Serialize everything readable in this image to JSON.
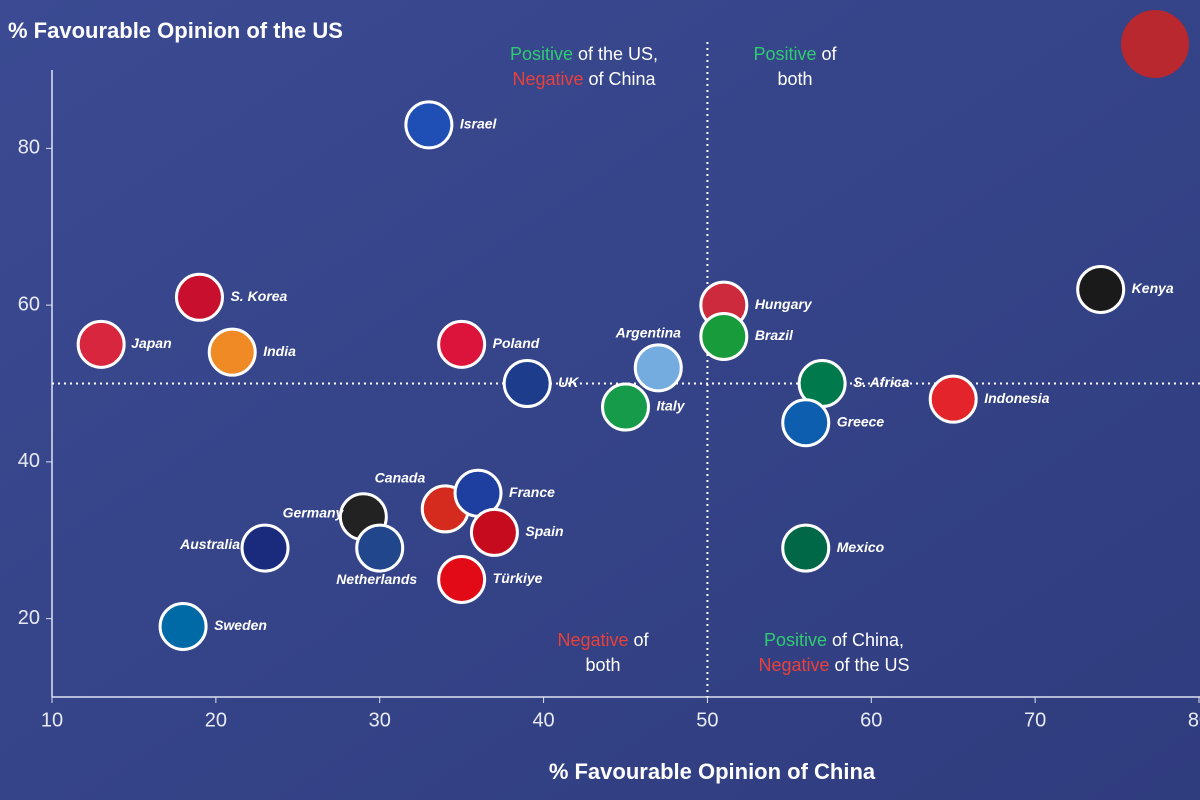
{
  "chart_data": {
    "type": "scatter",
    "y_title": "% Favourable Opinion of the US",
    "x_title": "% Favourable Opinion of China",
    "xlim": [
      10,
      80
    ],
    "xticks": [
      10,
      20,
      30,
      40,
      50,
      60,
      70,
      80
    ],
    "ylim": [
      10,
      90
    ],
    "yticks": [
      20,
      40,
      60,
      80
    ],
    "divider_x": 50,
    "divider_y": 50,
    "positive_color": "#2ecc71",
    "negative_color": "#e8403a",
    "quadrants": [
      [
        [
          {
            "text": "Positive",
            "tone": "positive"
          },
          {
            "text": " of the US,"
          }
        ],
        [
          {
            "text": "Negative",
            "tone": "negative"
          },
          {
            "text": " of China"
          }
        ]
      ],
      [
        [
          {
            "text": "Positive",
            "tone": "positive"
          },
          {
            "text": " of"
          }
        ],
        [
          {
            "text": "both"
          }
        ]
      ],
      [
        [
          {
            "text": "Negative",
            "tone": "negative"
          },
          {
            "text": " of"
          }
        ],
        [
          {
            "text": "both"
          }
        ]
      ],
      [
        [
          {
            "text": "Positive",
            "tone": "positive"
          },
          {
            "text": " of China,"
          }
        ],
        [
          {
            "text": "Negative",
            "tone": "negative"
          },
          {
            "text": " of the US"
          }
        ]
      ]
    ],
    "points": {
      "names": [
        "Israel",
        "S. Korea",
        "Japan",
        "India",
        "Poland",
        "UK",
        "Argentina",
        "Italy",
        "Hungary",
        "Brazil",
        "S. Africa",
        "Greece",
        "Indonesia",
        "Kenya",
        "Canada",
        "France",
        "Spain",
        "Germany",
        "Netherlands",
        "Australia",
        "Türkiye",
        "Sweden",
        "Mexico"
      ],
      "x": [
        33,
        19,
        13,
        21,
        35,
        39,
        47,
        45,
        51,
        51,
        57,
        56,
        65,
        74,
        34,
        36,
        37,
        29,
        30,
        23,
        35,
        18,
        56
      ],
      "values": [
        83,
        61,
        55,
        54,
        55,
        50,
        52,
        47,
        60,
        56,
        50,
        45,
        48,
        62,
        34,
        36,
        31,
        33,
        29,
        29,
        25,
        19,
        29
      ],
      "colors": [
        "#1f4fb5",
        "#c8102e",
        "#d7263d",
        "#f08a24",
        "#dc143c",
        "#1d3c8c",
        "#74acdf",
        "#169b4b",
        "#cd2a3e",
        "#179b3b",
        "#007a4d",
        "#0d5eaf",
        "#e3242b",
        "#1a1a1a",
        "#d52b1e",
        "#1f3fa0",
        "#c60b1e",
        "#222222",
        "#21468b",
        "#1a2a7c",
        "#e30a17",
        "#006aa7",
        "#006847"
      ]
    }
  }
}
